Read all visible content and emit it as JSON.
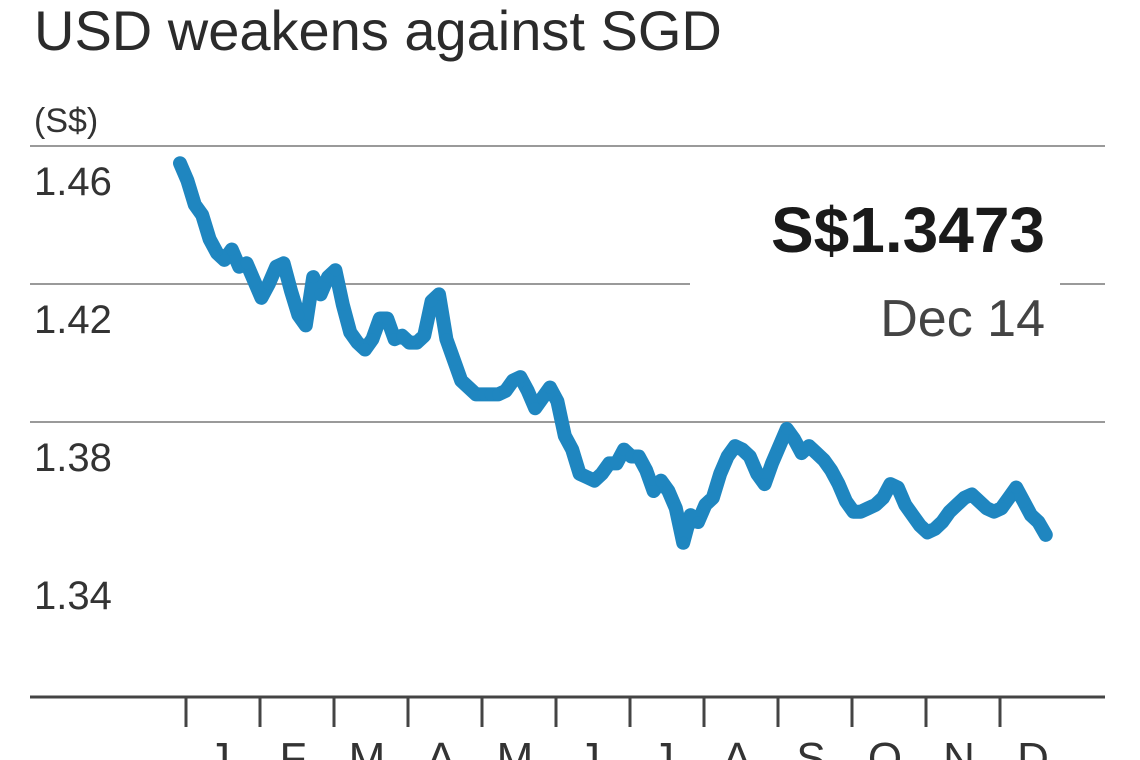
{
  "chart_data": {
    "type": "line",
    "title": "USD weakens against SGD",
    "ylabel": "(S$)",
    "xlabel": "",
    "ylim": [
      1.33,
      1.47
    ],
    "yticks": [
      1.46,
      1.42,
      1.38,
      1.34
    ],
    "ytick_labels": [
      "1.46",
      "1.42",
      "1.38",
      "1.34"
    ],
    "grid": true,
    "months": [
      "J",
      "F",
      "M",
      "A",
      "M",
      "J",
      "J",
      "A",
      "S",
      "O",
      "N",
      "D"
    ],
    "annotation": {
      "value": "S$1.3473",
      "date": "Dec 14"
    },
    "colors": {
      "series": "#1f86c0"
    },
    "series": [
      {
        "x": [
          0,
          0.1,
          0.2,
          0.3,
          0.4,
          0.5,
          0.6,
          0.7,
          0.8,
          0.9,
          1.0,
          1.1,
          1.2,
          1.3,
          1.4,
          1.5,
          1.6,
          1.7,
          1.8,
          1.9,
          2.0,
          2.1,
          2.2,
          2.3,
          2.4,
          2.5,
          2.6,
          2.7,
          2.8,
          2.9,
          3.0,
          3.1,
          3.2,
          3.3,
          3.4,
          3.5,
          3.6,
          3.7,
          3.8,
          3.9,
          4.0,
          4.1,
          4.2,
          4.3,
          4.4,
          4.5,
          4.6,
          4.7,
          4.8,
          4.9,
          5.0,
          5.1,
          5.2,
          5.3,
          5.4,
          5.5,
          5.6,
          5.7,
          5.8,
          5.9,
          6.0,
          6.1,
          6.2,
          6.3,
          6.4,
          6.5,
          6.6,
          6.7,
          6.8,
          6.9,
          7.0,
          7.1,
          7.2,
          7.3,
          7.4,
          7.5,
          7.6,
          7.7,
          7.8,
          7.9,
          8.0,
          8.1,
          8.2,
          8.3,
          8.4,
          8.5,
          8.6,
          8.7,
          8.8,
          8.9,
          9.0,
          9.1,
          9.2,
          9.3,
          9.4,
          9.5,
          9.6,
          9.7,
          9.8,
          9.9,
          10.0,
          10.1,
          10.2,
          10.3,
          10.4,
          10.5,
          10.6,
          10.7,
          10.8,
          10.9,
          11.0,
          11.1,
          11.2,
          11.3,
          11.4,
          11.5,
          11.6,
          11.7
        ],
        "values": [
          1.455,
          1.45,
          1.443,
          1.44,
          1.433,
          1.429,
          1.427,
          1.43,
          1.425,
          1.426,
          1.421,
          1.416,
          1.42,
          1.425,
          1.426,
          1.418,
          1.411,
          1.408,
          1.422,
          1.417,
          1.422,
          1.424,
          1.414,
          1.406,
          1.403,
          1.401,
          1.404,
          1.41,
          1.41,
          1.404,
          1.405,
          1.403,
          1.403,
          1.405,
          1.415,
          1.417,
          1.404,
          1.398,
          1.392,
          1.39,
          1.388,
          1.388,
          1.388,
          1.388,
          1.389,
          1.392,
          1.393,
          1.389,
          1.384,
          1.387,
          1.39,
          1.386,
          1.376,
          1.372,
          1.365,
          1.364,
          1.363,
          1.365,
          1.368,
          1.368,
          1.372,
          1.37,
          1.37,
          1.366,
          1.36,
          1.363,
          1.36,
          1.355,
          1.345,
          1.353,
          1.351,
          1.356,
          1.358,
          1.365,
          1.37,
          1.373,
          1.372,
          1.37,
          1.365,
          1.362,
          1.368,
          1.373,
          1.378,
          1.375,
          1.371,
          1.373,
          1.371,
          1.369,
          1.366,
          1.362,
          1.357,
          1.354,
          1.354,
          1.355,
          1.356,
          1.358,
          1.362,
          1.361,
          1.356,
          1.353,
          1.35,
          1.348,
          1.349,
          1.351,
          1.354,
          1.356,
          1.358,
          1.359,
          1.357,
          1.355,
          1.354,
          1.355,
          1.358,
          1.361,
          1.357,
          1.353,
          1.351,
          1.3473
        ]
      }
    ]
  }
}
